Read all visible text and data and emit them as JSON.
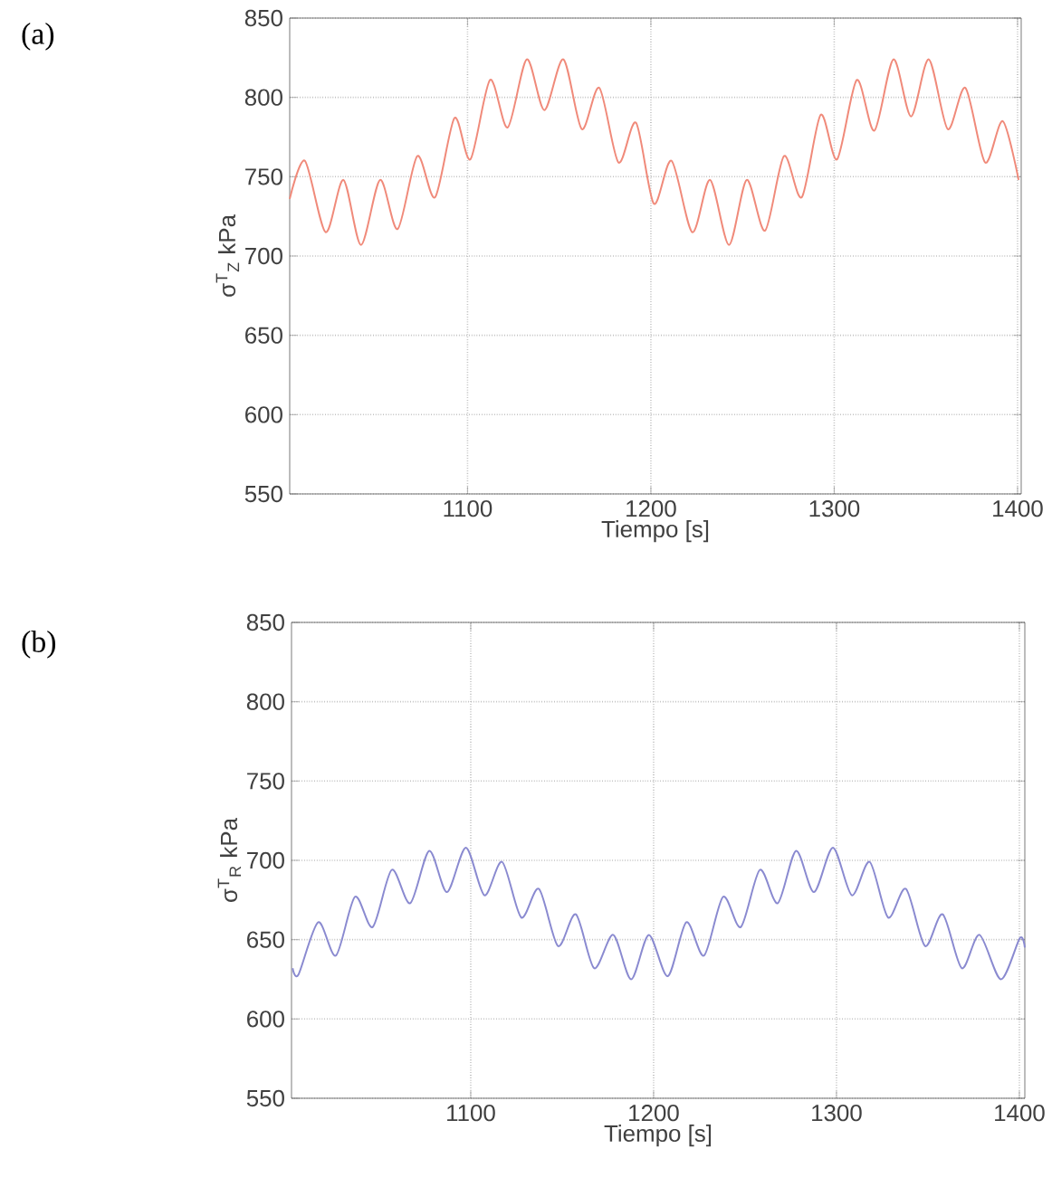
{
  "chart_data": [
    {
      "type": "line",
      "xlabel": "Tiempo [s]",
      "ylabel": "σ$^{T}$$_{Z}$ kPa",
      "annotations": [
        "(a)"
      ],
      "xlim": [
        1003,
        1402
      ],
      "ylim": [
        550,
        850
      ],
      "xticks": [
        1100,
        1200,
        1300,
        1400
      ],
      "yticks": [
        550,
        600,
        650,
        700,
        750,
        800,
        850
      ],
      "grid": true,
      "color": "#f08a7a",
      "x": [
        1003,
        1011.3,
        1022.6,
        1032.3,
        1041.9,
        1052.3,
        1061.9,
        1072.6,
        1082.3,
        1092.9,
        1101.6,
        1112.3,
        1121.9,
        1132.3,
        1141.9,
        1152.3,
        1162.3,
        1171.9,
        1182.3,
        1191.9,
        1201.6,
        1211.3,
        1222.6,
        1232.3,
        1242.6,
        1252.3,
        1262.3,
        1272.6,
        1282.3,
        1292.6,
        1301.6,
        1312.3,
        1321.9,
        1332.3,
        1341.9,
        1351.6,
        1361.9,
        1371.6,
        1382.3,
        1391.9,
        1400.6
      ],
      "values": [
        736,
        760,
        715,
        748,
        707,
        748,
        717,
        763,
        737,
        787,
        761,
        811,
        781,
        824,
        792,
        824,
        780,
        806,
        759,
        784,
        733,
        760,
        715,
        748,
        707,
        748,
        716,
        763,
        737,
        789,
        761,
        811,
        779,
        824,
        788,
        824,
        780,
        806,
        759,
        785,
        748
      ]
    },
    {
      "type": "line",
      "xlabel": "Tiempo [s]",
      "ylabel": "σ$^{T}$$_{R}$ kPa",
      "annotations": [
        "(b)"
      ],
      "xlim": [
        1002,
        1403
      ],
      "ylim": [
        550,
        850
      ],
      "xticks": [
        1100,
        1200,
        1300,
        1400
      ],
      "yticks": [
        550,
        600,
        650,
        700,
        750,
        800,
        850
      ],
      "grid": true,
      "color": "#8a8ad0",
      "x": [
        1002.6,
        1005.8,
        1016.6,
        1026.3,
        1036.7,
        1046.4,
        1056.8,
        1066.9,
        1077.3,
        1087.0,
        1097.4,
        1107.5,
        1117.2,
        1127.6,
        1137.3,
        1147.7,
        1157.5,
        1167.5,
        1177.9,
        1187.7,
        1197.4,
        1207.8,
        1217.9,
        1227.6,
        1238.0,
        1247.7,
        1258.1,
        1267.9,
        1277.9,
        1287.7,
        1298.1,
        1308.4,
        1318.2,
        1328.2,
        1338.0,
        1348.4,
        1358.1,
        1368.5,
        1378.2,
        1389.9,
        1400.3,
        1403
      ],
      "values": [
        632,
        628,
        661,
        640,
        677,
        658,
        694,
        673,
        706,
        680,
        708,
        678,
        699,
        664,
        682,
        646,
        666,
        632,
        653,
        625,
        653,
        627,
        661,
        640,
        677,
        658,
        694,
        673,
        706,
        680,
        708,
        678,
        699,
        664,
        682,
        646,
        666,
        632,
        653,
        625,
        651,
        645
      ]
    }
  ]
}
